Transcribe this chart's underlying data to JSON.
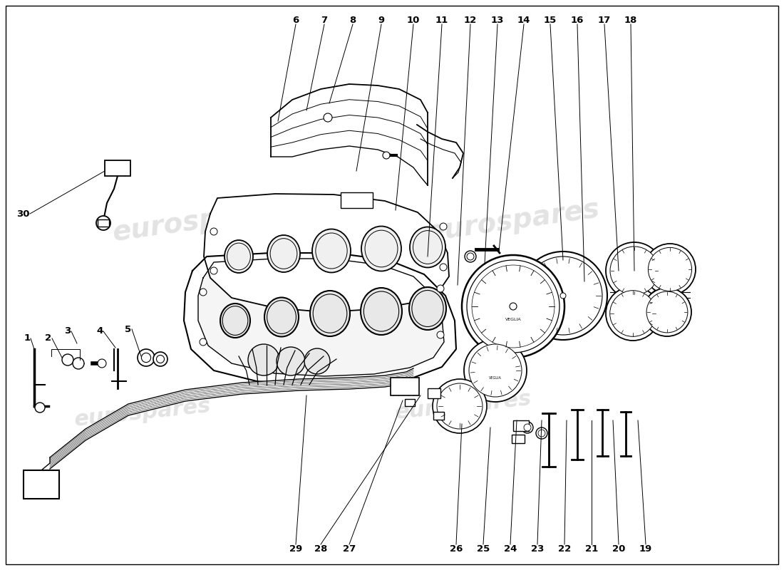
{
  "background_color": "#ffffff",
  "watermark_text": "eurospares",
  "watermark_color": "#c8c8c8",
  "line_color": "#000000",
  "figsize": [
    11.0,
    8.0
  ],
  "dpi": 100,
  "font_size_labels": 9.5,
  "top_numbers": [
    6,
    7,
    8,
    9,
    10,
    11,
    12,
    13,
    14,
    15,
    16,
    17,
    18
  ],
  "bottom_numbers": [
    29,
    28,
    27,
    26,
    25,
    24,
    23,
    22,
    21,
    20,
    19
  ],
  "left_numbers": [
    1,
    2,
    3,
    4,
    5
  ],
  "special_number": 30
}
